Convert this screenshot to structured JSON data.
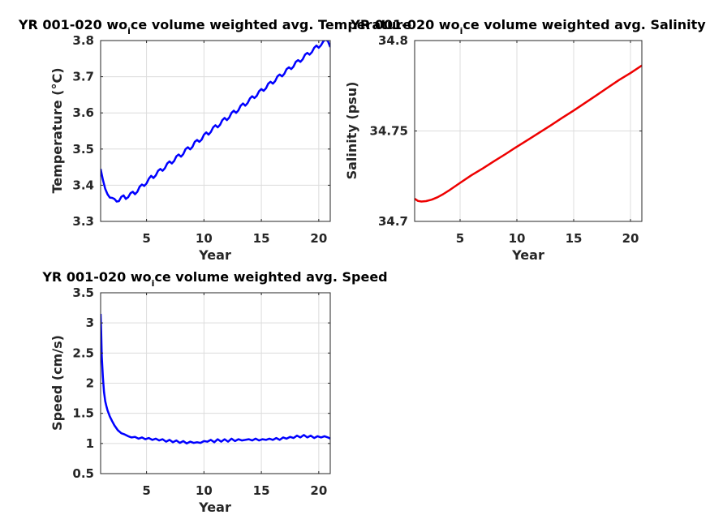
{
  "chart_data": [
    {
      "type": "line",
      "title_prefix": "YR 001-020 wo",
      "title_subscript": "i",
      "title_suffix": "ce volume weighted avg. Temperature",
      "xlabel": "Year",
      "ylabel": "Temperature (°C)",
      "xlim": [
        1,
        21
      ],
      "ylim": [
        3.3,
        3.8
      ],
      "xticks": [
        5,
        10,
        15,
        20
      ],
      "yticks": [
        3.3,
        3.4,
        3.5,
        3.6,
        3.7,
        3.8
      ],
      "ytick_labels": [
        "3.3",
        "3.4",
        "3.5",
        "3.6",
        "3.7",
        "3.8"
      ],
      "grid": true,
      "color": "#0000ff",
      "x": [
        1.0,
        1.2,
        1.4,
        1.6,
        1.8,
        2.0,
        2.2,
        2.4,
        2.6,
        2.8,
        3.0,
        3.2,
        3.4,
        3.6,
        3.8,
        4.0,
        4.2,
        4.4,
        4.6,
        4.8,
        5.0,
        5.2,
        5.4,
        5.6,
        5.8,
        6.0,
        6.2,
        6.4,
        6.6,
        6.8,
        7.0,
        7.2,
        7.4,
        7.6,
        7.8,
        8.0,
        8.2,
        8.4,
        8.6,
        8.8,
        9.0,
        9.2,
        9.4,
        9.6,
        9.8,
        10.0,
        10.2,
        10.4,
        10.6,
        10.8,
        11.0,
        11.2,
        11.4,
        11.6,
        11.8,
        12.0,
        12.2,
        12.4,
        12.6,
        12.8,
        13.0,
        13.2,
        13.4,
        13.6,
        13.8,
        14.0,
        14.2,
        14.4,
        14.6,
        14.8,
        15.0,
        15.2,
        15.4,
        15.6,
        15.8,
        16.0,
        16.2,
        16.4,
        16.6,
        16.8,
        17.0,
        17.2,
        17.4,
        17.6,
        17.8,
        18.0,
        18.2,
        18.4,
        18.6,
        18.8,
        19.0,
        19.2,
        19.4,
        19.6,
        19.8,
        20.0,
        20.2,
        20.4,
        20.6,
        20.8,
        21.0
      ],
      "y": [
        3.445,
        3.415,
        3.39,
        3.375,
        3.366,
        3.365,
        3.362,
        3.355,
        3.356,
        3.368,
        3.372,
        3.362,
        3.367,
        3.378,
        3.382,
        3.375,
        3.382,
        3.396,
        3.402,
        3.398,
        3.405,
        3.418,
        3.426,
        3.42,
        3.427,
        3.44,
        3.445,
        3.44,
        3.447,
        3.46,
        3.466,
        3.46,
        3.467,
        3.48,
        3.485,
        3.479,
        3.486,
        3.5,
        3.505,
        3.499,
        3.506,
        3.52,
        3.525,
        3.52,
        3.526,
        3.54,
        3.546,
        3.54,
        3.547,
        3.56,
        3.566,
        3.56,
        3.567,
        3.58,
        3.586,
        3.58,
        3.587,
        3.6,
        3.606,
        3.6,
        3.607,
        3.62,
        3.626,
        3.62,
        3.627,
        3.64,
        3.646,
        3.641,
        3.647,
        3.66,
        3.666,
        3.661,
        3.668,
        3.681,
        3.686,
        3.681,
        3.688,
        3.701,
        3.706,
        3.701,
        3.708,
        3.721,
        3.726,
        3.721,
        3.728,
        3.741,
        3.746,
        3.741,
        3.748,
        3.761,
        3.766,
        3.761,
        3.768,
        3.78,
        3.786,
        3.78,
        3.787,
        3.798,
        3.803,
        3.798,
        3.782
      ]
    },
    {
      "type": "line",
      "title_prefix": "YR 001-020 wo",
      "title_subscript": "i",
      "title_suffix": "ce volume weighted avg. Salinity",
      "xlabel": "Year",
      "ylabel": "Salinity (psu)",
      "xlim": [
        1,
        21
      ],
      "ylim": [
        34.7,
        34.8
      ],
      "xticks": [
        5,
        10,
        15,
        20
      ],
      "yticks": [
        34.7,
        34.75,
        34.8
      ],
      "ytick_labels": [
        "34.7",
        "34.75",
        "34.8"
      ],
      "grid": true,
      "color": "#ee0000",
      "x": [
        1.0,
        1.3,
        1.6,
        2.0,
        2.5,
        3.0,
        3.5,
        4.0,
        5.0,
        6.0,
        7.0,
        8.0,
        9.0,
        10.0,
        11.0,
        12.0,
        13.0,
        14.0,
        15.0,
        16.0,
        17.0,
        18.0,
        19.0,
        20.0,
        21.0
      ],
      "y": [
        34.7125,
        34.7113,
        34.711,
        34.7112,
        34.712,
        34.7133,
        34.715,
        34.717,
        34.7213,
        34.7255,
        34.7293,
        34.7333,
        34.7372,
        34.7413,
        34.7452,
        34.7492,
        34.7532,
        34.7573,
        34.7613,
        34.7655,
        34.7697,
        34.774,
        34.7782,
        34.782,
        34.7862
      ]
    },
    {
      "type": "line",
      "title_prefix": "YR 001-020 wo",
      "title_subscript": "i",
      "title_suffix": "ce volume weighted avg. Speed",
      "xlabel": "Year",
      "ylabel": "Speed (cm/s)",
      "xlim": [
        1,
        21
      ],
      "ylim": [
        0.5,
        3.5
      ],
      "xticks": [
        5,
        10,
        15,
        20
      ],
      "yticks": [
        0.5,
        1,
        1.5,
        2,
        2.5,
        3,
        3.5
      ],
      "ytick_labels": [
        "0.5",
        "1",
        "1.5",
        "2",
        "2.5",
        "3",
        "3.5"
      ],
      "grid": true,
      "color": "#0000ff",
      "x": [
        1.0,
        1.05,
        1.1,
        1.2,
        1.3,
        1.4,
        1.5,
        1.6,
        1.8,
        2.0,
        2.2,
        2.5,
        2.8,
        3.1,
        3.4,
        3.7,
        4.0,
        4.3,
        4.6,
        4.9,
        5.2,
        5.5,
        5.8,
        6.1,
        6.4,
        6.7,
        7.0,
        7.3,
        7.6,
        7.9,
        8.2,
        8.5,
        8.8,
        9.1,
        9.4,
        9.7,
        10.0,
        10.3,
        10.6,
        10.9,
        11.2,
        11.5,
        11.8,
        12.1,
        12.4,
        12.7,
        13.0,
        13.3,
        13.6,
        13.9,
        14.2,
        14.5,
        14.8,
        15.1,
        15.4,
        15.7,
        16.0,
        16.3,
        16.6,
        16.9,
        17.2,
        17.5,
        17.8,
        18.1,
        18.4,
        18.7,
        19.0,
        19.3,
        19.6,
        19.9,
        20.2,
        20.5,
        20.8,
        21.0
      ],
      "y": [
        3.15,
        2.85,
        2.45,
        2.1,
        1.85,
        1.7,
        1.62,
        1.55,
        1.45,
        1.37,
        1.3,
        1.22,
        1.17,
        1.15,
        1.12,
        1.1,
        1.11,
        1.08,
        1.1,
        1.07,
        1.09,
        1.06,
        1.08,
        1.05,
        1.07,
        1.03,
        1.06,
        1.02,
        1.05,
        1.01,
        1.04,
        1.0,
        1.03,
        1.01,
        1.02,
        1.01,
        1.04,
        1.03,
        1.06,
        1.02,
        1.07,
        1.03,
        1.07,
        1.03,
        1.08,
        1.04,
        1.07,
        1.05,
        1.06,
        1.07,
        1.05,
        1.08,
        1.05,
        1.07,
        1.06,
        1.08,
        1.06,
        1.09,
        1.06,
        1.1,
        1.08,
        1.11,
        1.09,
        1.13,
        1.1,
        1.14,
        1.1,
        1.13,
        1.09,
        1.12,
        1.1,
        1.12,
        1.1,
        1.08
      ]
    }
  ]
}
